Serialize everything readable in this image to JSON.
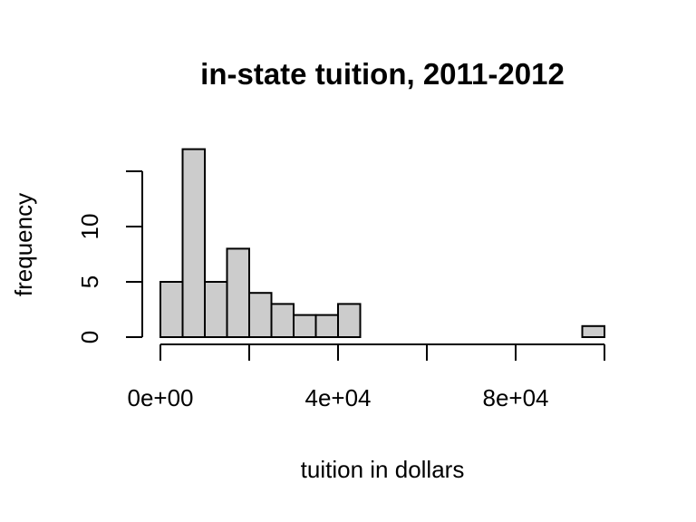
{
  "chart_data": {
    "type": "bar",
    "title": "in-state tuition, 2011-2012",
    "xlabel": "tuition in dollars",
    "ylabel": "frequency",
    "bin_width": 5000,
    "bins": [
      {
        "start": 0,
        "end": 5000,
        "count": 5
      },
      {
        "start": 5000,
        "end": 10000,
        "count": 17
      },
      {
        "start": 10000,
        "end": 15000,
        "count": 5
      },
      {
        "start": 15000,
        "end": 20000,
        "count": 8
      },
      {
        "start": 20000,
        "end": 25000,
        "count": 4
      },
      {
        "start": 25000,
        "end": 30000,
        "count": 3
      },
      {
        "start": 30000,
        "end": 35000,
        "count": 2
      },
      {
        "start": 35000,
        "end": 40000,
        "count": 2
      },
      {
        "start": 40000,
        "end": 45000,
        "count": 3
      },
      {
        "start": 45000,
        "end": 50000,
        "count": 0
      },
      {
        "start": 50000,
        "end": 55000,
        "count": 0
      },
      {
        "start": 55000,
        "end": 60000,
        "count": 0
      },
      {
        "start": 60000,
        "end": 65000,
        "count": 0
      },
      {
        "start": 65000,
        "end": 70000,
        "count": 0
      },
      {
        "start": 70000,
        "end": 75000,
        "count": 0
      },
      {
        "start": 75000,
        "end": 80000,
        "count": 0
      },
      {
        "start": 80000,
        "end": 85000,
        "count": 0
      },
      {
        "start": 85000,
        "end": 90000,
        "count": 0
      },
      {
        "start": 90000,
        "end": 95000,
        "count": 0
      },
      {
        "start": 95000,
        "end": 100000,
        "count": 1
      }
    ],
    "xlim": [
      0,
      100000
    ],
    "ylim": [
      0,
      15
    ],
    "x_ticks": [
      0,
      20000,
      40000,
      60000,
      80000,
      100000
    ],
    "x_tick_labels": [
      "0e+00",
      "",
      "4e+04",
      "",
      "8e+04",
      ""
    ],
    "y_ticks": [
      0,
      5,
      10,
      15
    ],
    "y_tick_labels": [
      "0",
      "5",
      "10",
      ""
    ],
    "bar_color": "#cccccc",
    "grid": false,
    "legend": "none"
  }
}
